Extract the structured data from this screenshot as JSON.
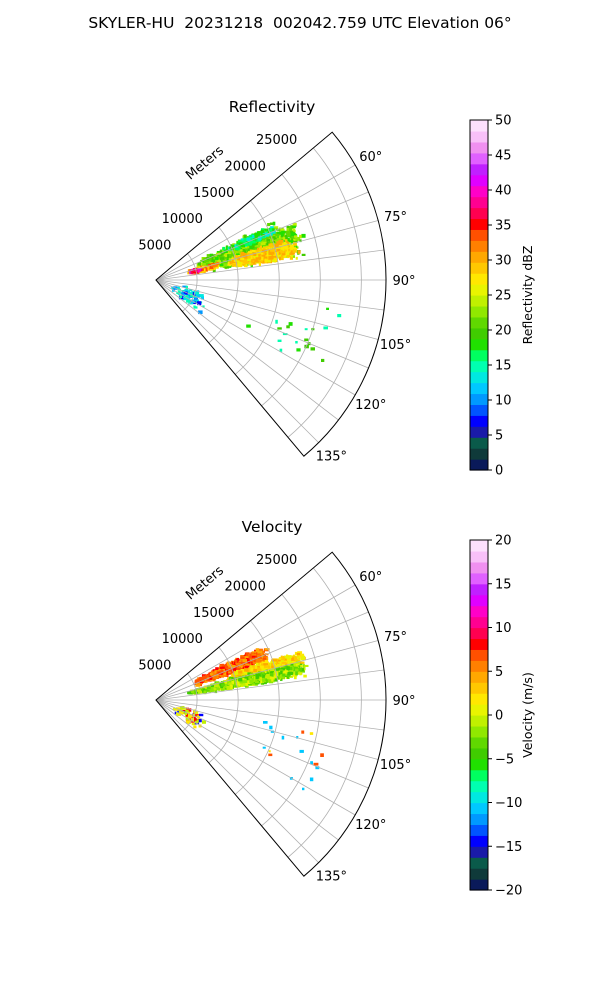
{
  "figure_title": "SKYLER-HU  20231218  002042.759 UTC Elevation 06°",
  "panels": [
    {
      "id": "reflectivity",
      "title": "Reflectivity",
      "range_axis_label": "Meters",
      "range_ticks": [
        "5000",
        "10000",
        "15000",
        "20000",
        "25000"
      ],
      "azimuth_ticks": [
        "60°",
        "75°",
        "90°",
        "105°",
        "120°",
        "135°"
      ],
      "colorbar": {
        "label": "Reflectivity dBZ",
        "min": 0,
        "max": 50,
        "ticks": [
          "0",
          "5",
          "10",
          "15",
          "20",
          "25",
          "30",
          "35",
          "40",
          "45",
          "50"
        ],
        "colors": [
          "#0a1a5a",
          "#0f3a3a",
          "#0a5a4a",
          "#1a1aa8",
          "#0000ff",
          "#0055ff",
          "#0099ff",
          "#00c8ff",
          "#00e8e0",
          "#00ffb0",
          "#00ff60",
          "#20e000",
          "#40cc00",
          "#60d800",
          "#90e800",
          "#c0f000",
          "#e8f400",
          "#ffe800",
          "#ffc800",
          "#ffa800",
          "#ff8000",
          "#ff5000",
          "#ff0000",
          "#ff0050",
          "#ff0090",
          "#ff00c8",
          "#e000ff",
          "#c020ff",
          "#e060ff",
          "#f090f0",
          "#f8c0f8",
          "#fde0fd"
        ]
      }
    },
    {
      "id": "velocity",
      "title": "Velocity",
      "range_axis_label": "Meters",
      "range_ticks": [
        "5000",
        "10000",
        "15000",
        "20000",
        "25000"
      ],
      "azimuth_ticks": [
        "60°",
        "75°",
        "90°",
        "105°",
        "120°",
        "135°"
      ],
      "colorbar": {
        "label": "Velocity (m/s)",
        "min": -20,
        "max": 20,
        "ticks": [
          "−20",
          "−15",
          "−10",
          "−5",
          "0",
          "5",
          "10",
          "15",
          "20"
        ],
        "colors": [
          "#0a1a5a",
          "#0f3a3a",
          "#0a5a4a",
          "#1a1aa8",
          "#0000ff",
          "#0055ff",
          "#0099ff",
          "#00c8ff",
          "#00e8e0",
          "#00ffb0",
          "#00ff60",
          "#20e000",
          "#40cc00",
          "#60d800",
          "#90e800",
          "#c0f000",
          "#e8f400",
          "#ffe800",
          "#ffc800",
          "#ffa800",
          "#ff8000",
          "#ff5000",
          "#ff0000",
          "#ff0050",
          "#ff0090",
          "#ff00c8",
          "#e000ff",
          "#c020ff",
          "#e060ff",
          "#f090f0",
          "#f8c0f8",
          "#fde0fd"
        ]
      }
    }
  ],
  "chart_data": [
    {
      "type": "heatmap",
      "projection": "polar sector",
      "title": "Reflectivity",
      "range_label": "Meters",
      "range_lim": [
        0,
        28000
      ],
      "range_ticks": [
        5000,
        10000,
        15000,
        20000,
        25000
      ],
      "azimuth_lim_deg": [
        50,
        140
      ],
      "azimuth_ticks_deg": [
        60,
        75,
        90,
        105,
        120,
        135
      ],
      "grid": true,
      "colorbar_label": "Reflectivity dBZ",
      "color_range": [
        0,
        50
      ],
      "echoes": [
        {
          "azimuth_deg": [
            62,
            82
          ],
          "range_m": [
            5000,
            19000
          ],
          "value_approx": 20
        },
        {
          "azimuth_deg": [
            73,
            82
          ],
          "range_m": [
            9000,
            18000
          ],
          "value_approx": 29
        },
        {
          "azimuth_deg": [
            74,
            79
          ],
          "range_m": [
            4000,
            7000
          ],
          "value_approx": 38
        },
        {
          "azimuth_deg": [
            100,
            132
          ],
          "range_m": [
            2000,
            7000
          ],
          "value_approx": 10
        }
      ]
    },
    {
      "type": "heatmap",
      "projection": "polar sector",
      "title": "Velocity",
      "range_label": "Meters",
      "range_lim": [
        0,
        28000
      ],
      "range_ticks": [
        5000,
        10000,
        15000,
        20000,
        25000
      ],
      "azimuth_lim_deg": [
        50,
        140
      ],
      "azimuth_ticks_deg": [
        60,
        75,
        90,
        105,
        120,
        135
      ],
      "grid": true,
      "colorbar_label": "Velocity (m/s)",
      "color_range": [
        -20,
        20
      ],
      "echoes": [
        {
          "azimuth_deg": [
            62,
            72
          ],
          "range_m": [
            5000,
            14000
          ],
          "value_approx": 10
        },
        {
          "azimuth_deg": [
            70,
            78
          ],
          "range_m": [
            10000,
            19000
          ],
          "value_approx": 2
        },
        {
          "azimuth_deg": [
            74,
            82
          ],
          "range_m": [
            4000,
            19000
          ],
          "value_approx": -3
        },
        {
          "azimuth_deg": [
            100,
            132
          ],
          "range_m": [
            2000,
            7000
          ],
          "value_approx": 3
        }
      ]
    }
  ]
}
